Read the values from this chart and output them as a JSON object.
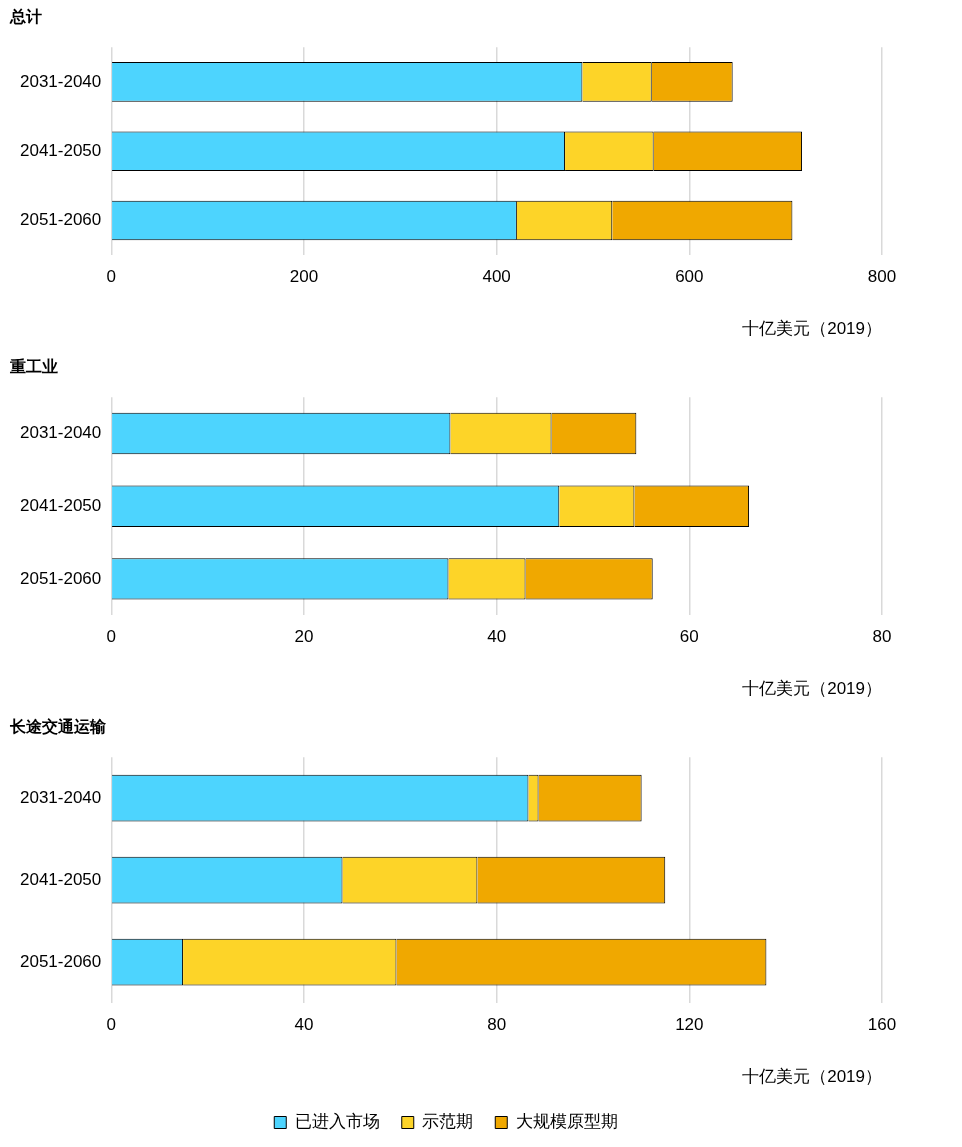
{
  "chart_data": [
    {
      "type": "bar",
      "title": "总计",
      "xlabel": "十亿美元（2019）",
      "orientation": "horizontal",
      "stacked": true,
      "categories": [
        "2031-2040",
        "2041-2050",
        "2051-2060"
      ],
      "series": [
        {
          "color": "#4dd4fe",
          "values": [
            489,
            471,
            421
          ]
        },
        {
          "color": "#fdd428",
          "values": [
            72,
            92,
            99
          ]
        },
        {
          "color": "#f0a800",
          "values": [
            84,
            154,
            187
          ]
        }
      ],
      "xlim": [
        0,
        800
      ],
      "xticks": [
        0,
        200,
        400,
        600,
        800
      ],
      "grid": "x",
      "legend": false
    },
    {
      "type": "bar",
      "title": "重工业",
      "xlabel": "十亿美元（2019）",
      "orientation": "horizontal",
      "stacked": true,
      "categories": [
        "2031-2040",
        "2041-2050",
        "2051-2060"
      ],
      "series": [
        {
          "color": "#4dd4fe",
          "values": [
            35.2,
            46.5,
            35
          ]
        },
        {
          "color": "#fdd428",
          "values": [
            10.5,
            7.8,
            8
          ]
        },
        {
          "color": "#f0a800",
          "values": [
            8.8,
            11.9,
            13.2
          ]
        }
      ],
      "xlim": [
        0,
        80
      ],
      "xticks": [
        0,
        20,
        40,
        60,
        80
      ],
      "grid": "x",
      "legend": false
    },
    {
      "type": "bar",
      "title": "长途交通运输",
      "xlabel": "十亿美元（2019）",
      "orientation": "horizontal",
      "stacked": true,
      "categories": [
        "2031-2040",
        "2041-2050",
        "2051-2060"
      ],
      "series": [
        {
          "name": "已进入市场",
          "color": "#4dd4fe",
          "values": [
            86.6,
            48,
            14.9
          ]
        },
        {
          "name": "示范期",
          "color": "#fdd428",
          "values": [
            2.1,
            28,
            44.3
          ]
        },
        {
          "name": "大规模原型期",
          "color": "#f0a800",
          "values": [
            21.4,
            39,
            76.8
          ]
        }
      ],
      "xlim": [
        0,
        160
      ],
      "xticks": [
        0,
        40,
        80,
        120,
        160
      ],
      "grid": "x",
      "legend": "bottom"
    }
  ]
}
